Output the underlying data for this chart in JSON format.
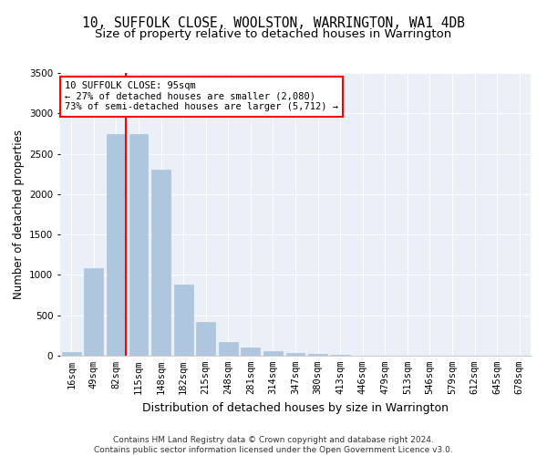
{
  "title": "10, SUFFOLK CLOSE, WOOLSTON, WARRINGTON, WA1 4DB",
  "subtitle": "Size of property relative to detached houses in Warrington",
  "xlabel": "Distribution of detached houses by size in Warrington",
  "ylabel": "Number of detached properties",
  "categories": [
    "16sqm",
    "49sqm",
    "82sqm",
    "115sqm",
    "148sqm",
    "182sqm",
    "215sqm",
    "248sqm",
    "281sqm",
    "314sqm",
    "347sqm",
    "380sqm",
    "413sqm",
    "446sqm",
    "479sqm",
    "513sqm",
    "546sqm",
    "579sqm",
    "612sqm",
    "645sqm",
    "678sqm"
  ],
  "values": [
    50,
    1080,
    2740,
    2740,
    2300,
    880,
    420,
    175,
    100,
    60,
    35,
    20,
    10,
    5,
    5,
    5,
    3,
    2,
    1,
    1,
    1
  ],
  "bar_color": "#aec6de",
  "bar_edge_color": "#aec6de",
  "vline_color": "red",
  "vline_position": 2.43,
  "annotation_text": "10 SUFFOLK CLOSE: 95sqm\n← 27% of detached houses are smaller (2,080)\n73% of semi-detached houses are larger (5,712) →",
  "annotation_box_color": "white",
  "annotation_box_edge_color": "red",
  "ylim": [
    0,
    3500
  ],
  "yticks": [
    0,
    500,
    1000,
    1500,
    2000,
    2500,
    3000,
    3500
  ],
  "background_color": "#eaeff8",
  "footer_line1": "Contains HM Land Registry data © Crown copyright and database right 2024.",
  "footer_line2": "Contains public sector information licensed under the Open Government Licence v3.0.",
  "title_fontsize": 10.5,
  "subtitle_fontsize": 9.5,
  "xlabel_fontsize": 9,
  "ylabel_fontsize": 8.5,
  "tick_fontsize": 7.5,
  "annot_fontsize": 7.5,
  "footer_fontsize": 6.5
}
